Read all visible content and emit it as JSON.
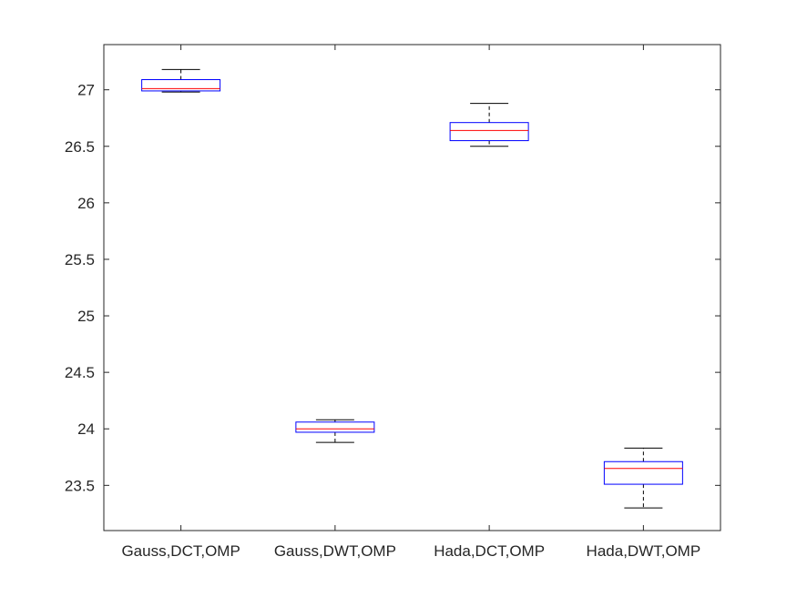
{
  "chart_data": {
    "type": "boxplot",
    "title": "",
    "xlabel": "",
    "ylabel": "",
    "ylim": [
      23.1,
      27.4
    ],
    "y_ticks": [
      23.5,
      24,
      24.5,
      25,
      25.5,
      26,
      26.5,
      27
    ],
    "y_tick_labels": [
      "23.5",
      "24",
      "24.5",
      "25",
      "25.5",
      "26",
      "26.5",
      "27"
    ],
    "grid": false,
    "categories": [
      "Gauss,DCT,OMP",
      "Gauss,DWT,OMP",
      "Hada,DCT,OMP",
      "Hada,DWT,OMP"
    ],
    "boxes": [
      {
        "category": "Gauss,DCT,OMP",
        "min": 26.98,
        "q1": 26.99,
        "median": 27.01,
        "q3": 27.09,
        "max": 27.18
      },
      {
        "category": "Gauss,DWT,OMP",
        "min": 23.88,
        "q1": 23.97,
        "median": 24.0,
        "q3": 24.06,
        "max": 24.08
      },
      {
        "category": "Hada,DCT,OMP",
        "min": 26.5,
        "q1": 26.55,
        "median": 26.64,
        "q3": 26.71,
        "max": 26.88
      },
      {
        "category": "Hada,DWT,OMP",
        "min": 23.3,
        "q1": 23.51,
        "median": 23.65,
        "q3": 23.71,
        "max": 23.83
      }
    ],
    "colors": {
      "box": "#0000ff",
      "median": "#ff0000",
      "whisker": "#000000",
      "axis": "#262626"
    }
  }
}
